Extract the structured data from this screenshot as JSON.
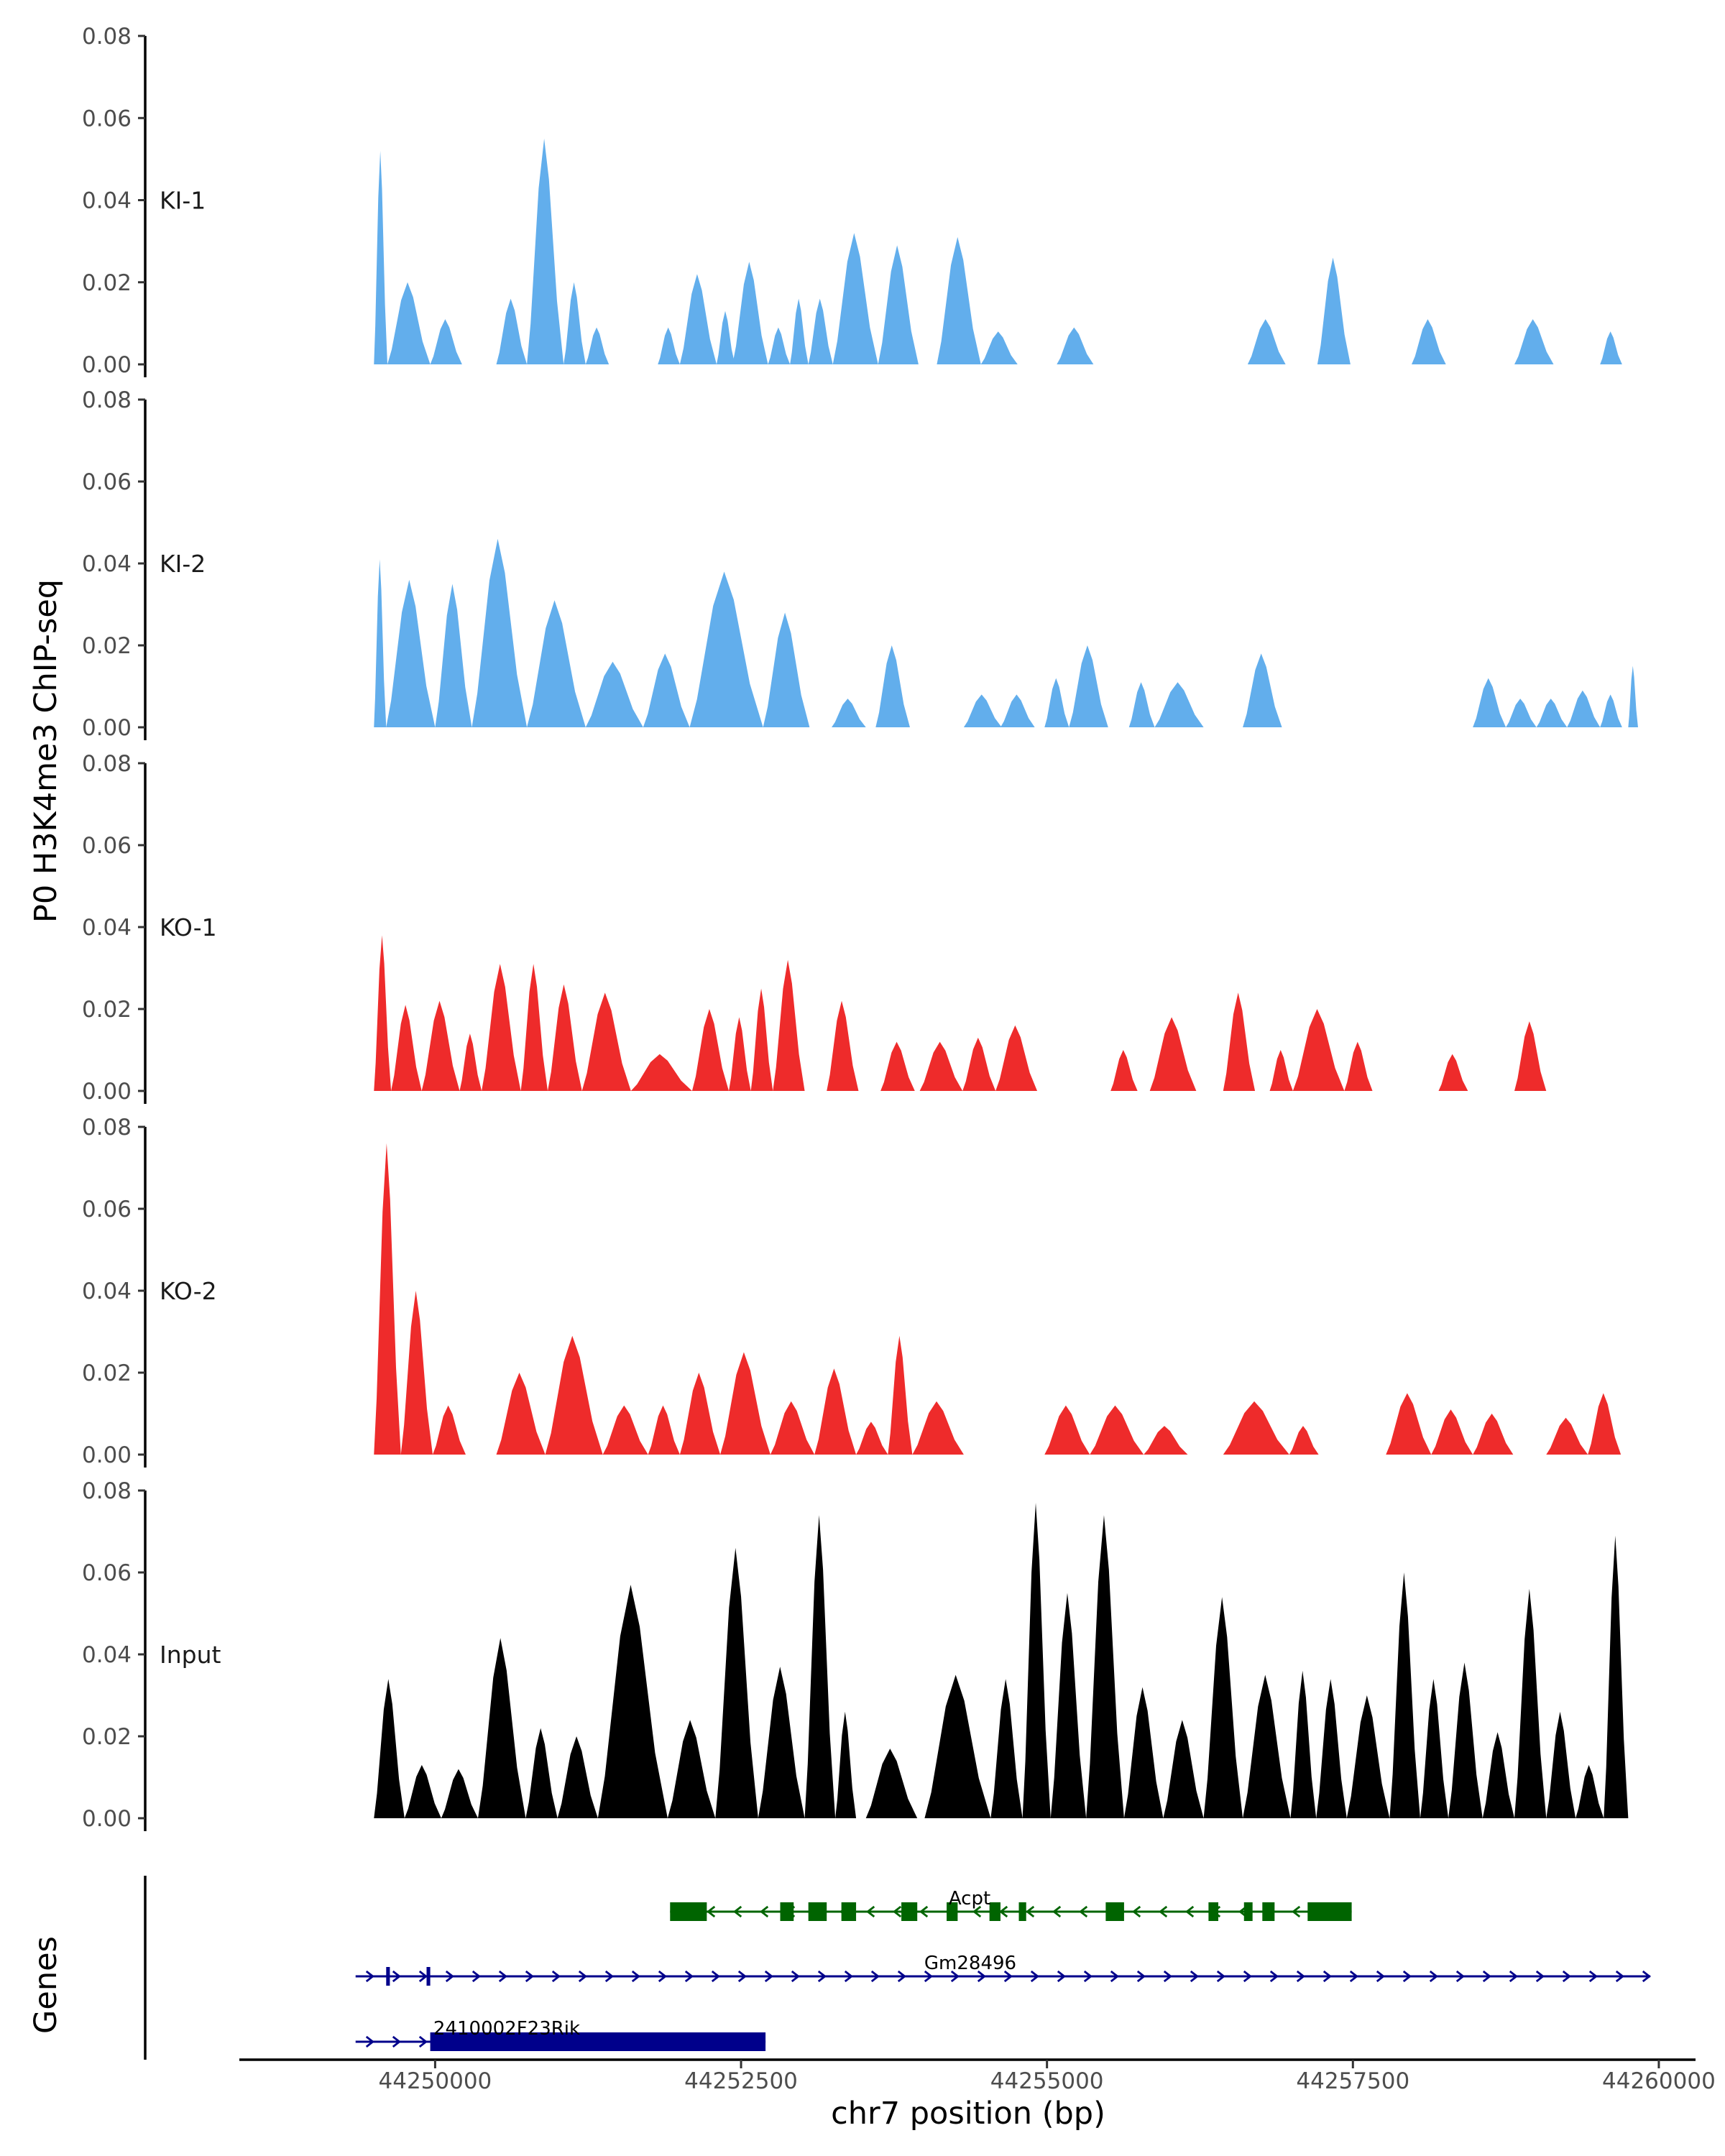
{
  "chart_data": {
    "type": "area",
    "ylabel": "P0 H3K4me3 ChIP-seq",
    "xlabel": "chr7 position (bp)",
    "genes_label": "Genes",
    "x_range": [
      44249500,
      44260000
    ],
    "xlim": [
      44248400,
      44260300
    ],
    "ylim": [
      0,
      0.08
    ],
    "y_ticks": [
      0,
      0.02,
      0.04,
      0.06,
      0.08
    ],
    "y_tick_labels": [
      "0.00",
      "0.02",
      "0.04",
      "0.06",
      "0.08"
    ],
    "x_ticks": [
      44250000,
      44252500,
      44255000,
      44257500,
      44260000
    ],
    "x_tick_labels": [
      "44250000",
      "44252500",
      "44255000",
      "44257500",
      "44260000"
    ],
    "colors": {
      "KI": "#62aeec",
      "KO": "#ee2b2b",
      "Input": "#000000",
      "gene_green": "#006400",
      "gene_navy": "#00008b"
    },
    "series": [
      {
        "name": "KI-1",
        "color": "#62aeec",
        "peaks": [
          [
            44249500,
            44249610,
            0.052
          ],
          [
            44249610,
            44249960,
            0.02
          ],
          [
            44249960,
            44250220,
            0.011
          ],
          [
            44250500,
            44250750,
            0.016
          ],
          [
            44250750,
            44251050,
            0.055
          ],
          [
            44251050,
            44251230,
            0.02
          ],
          [
            44251230,
            44251420,
            0.009
          ],
          [
            44251820,
            44252000,
            0.009
          ],
          [
            44252000,
            44252300,
            0.022
          ],
          [
            44252300,
            44252450,
            0.013
          ],
          [
            44252430,
            44252720,
            0.025
          ],
          [
            44252720,
            44252900,
            0.009
          ],
          [
            44252900,
            44253050,
            0.016
          ],
          [
            44253050,
            44253250,
            0.016
          ],
          [
            44253250,
            44253620,
            0.032
          ],
          [
            44253620,
            44253950,
            0.029
          ],
          [
            44254100,
            44254460,
            0.031
          ],
          [
            44254460,
            44254760,
            0.008
          ],
          [
            44255080,
            44255380,
            0.009
          ],
          [
            44256640,
            44256950,
            0.011
          ],
          [
            44257210,
            44257480,
            0.026
          ],
          [
            44257980,
            44258260,
            0.011
          ],
          [
            44258820,
            44259140,
            0.011
          ],
          [
            44259520,
            44259700,
            0.008
          ]
        ]
      },
      {
        "name": "KI-2",
        "color": "#62aeec",
        "peaks": [
          [
            44249500,
            44249600,
            0.041
          ],
          [
            44249600,
            44250000,
            0.036
          ],
          [
            44250000,
            44250300,
            0.035
          ],
          [
            44250300,
            44250750,
            0.046
          ],
          [
            44250750,
            44251230,
            0.031
          ],
          [
            44251230,
            44251700,
            0.016
          ],
          [
            44251700,
            44252080,
            0.018
          ],
          [
            44252080,
            44252680,
            0.038
          ],
          [
            44252680,
            44253060,
            0.028
          ],
          [
            44253240,
            44253520,
            0.007
          ],
          [
            44253600,
            44253880,
            0.02
          ],
          [
            44254320,
            44254630,
            0.008
          ],
          [
            44254620,
            44254900,
            0.008
          ],
          [
            44254980,
            44255180,
            0.012
          ],
          [
            44255180,
            44255500,
            0.02
          ],
          [
            44255670,
            44255880,
            0.011
          ],
          [
            44255880,
            44256280,
            0.011
          ],
          [
            44256600,
            44256920,
            0.018
          ],
          [
            44258480,
            44258750,
            0.012
          ],
          [
            44258750,
            44259000,
            0.007
          ],
          [
            44259000,
            44259250,
            0.007
          ],
          [
            44259250,
            44259520,
            0.009
          ],
          [
            44259520,
            44259700,
            0.008
          ],
          [
            44259750,
            44259830,
            0.015
          ]
        ]
      },
      {
        "name": "KO-1",
        "color": "#ee2b2b",
        "peaks": [
          [
            44249500,
            44249640,
            0.038
          ],
          [
            44249640,
            44249890,
            0.021
          ],
          [
            44249890,
            44250200,
            0.022
          ],
          [
            44250200,
            44250380,
            0.014
          ],
          [
            44250380,
            44250700,
            0.031
          ],
          [
            44250700,
            44250920,
            0.031
          ],
          [
            44250920,
            44251200,
            0.026
          ],
          [
            44251200,
            44251600,
            0.024
          ],
          [
            44251600,
            44252100,
            0.009
          ],
          [
            44252100,
            44252400,
            0.02
          ],
          [
            44252400,
            44252580,
            0.018
          ],
          [
            44252580,
            44252760,
            0.025
          ],
          [
            44252760,
            44253020,
            0.032
          ],
          [
            44253200,
            44253460,
            0.022
          ],
          [
            44253640,
            44253920,
            0.012
          ],
          [
            44253960,
            44254310,
            0.012
          ],
          [
            44254310,
            44254580,
            0.013
          ],
          [
            44254580,
            44254920,
            0.016
          ],
          [
            44255520,
            44255740,
            0.01
          ],
          [
            44255840,
            44256220,
            0.018
          ],
          [
            44256440,
            44256700,
            0.024
          ],
          [
            44256820,
            44257010,
            0.01
          ],
          [
            44257010,
            44257430,
            0.02
          ],
          [
            44257430,
            44257660,
            0.012
          ],
          [
            44258200,
            44258440,
            0.009
          ],
          [
            44258820,
            44259080,
            0.017
          ]
        ]
      },
      {
        "name": "KO-2",
        "color": "#ee2b2b",
        "peaks": [
          [
            44249500,
            44249720,
            0.076
          ],
          [
            44249720,
            44249980,
            0.04
          ],
          [
            44249980,
            44250250,
            0.012
          ],
          [
            44250500,
            44250900,
            0.02
          ],
          [
            44250900,
            44251370,
            0.029
          ],
          [
            44251370,
            44251740,
            0.012
          ],
          [
            44251740,
            44252000,
            0.012
          ],
          [
            44252000,
            44252330,
            0.02
          ],
          [
            44252330,
            44252740,
            0.025
          ],
          [
            44252740,
            44253100,
            0.013
          ],
          [
            44253100,
            44253440,
            0.021
          ],
          [
            44253440,
            44253700,
            0.008
          ],
          [
            44253700,
            44253900,
            0.029
          ],
          [
            44253900,
            44254320,
            0.013
          ],
          [
            44254980,
            44255350,
            0.012
          ],
          [
            44255350,
            44255790,
            0.012
          ],
          [
            44255790,
            44256150,
            0.007
          ],
          [
            44256440,
            44256980,
            0.013
          ],
          [
            44256980,
            44257220,
            0.007
          ],
          [
            44257770,
            44258140,
            0.015
          ],
          [
            44258140,
            44258480,
            0.011
          ],
          [
            44258480,
            44258810,
            0.01
          ],
          [
            44259080,
            44259420,
            0.009
          ],
          [
            44259420,
            44259690,
            0.015
          ]
        ]
      },
      {
        "name": "Input",
        "color": "#000000",
        "peaks": [
          [
            44249500,
            44249750,
            0.034
          ],
          [
            44249750,
            44250050,
            0.013
          ],
          [
            44250050,
            44250350,
            0.012
          ],
          [
            44250350,
            44250740,
            0.044
          ],
          [
            44250740,
            44251000,
            0.022
          ],
          [
            44251000,
            44251330,
            0.02
          ],
          [
            44251330,
            44251900,
            0.057
          ],
          [
            44251900,
            44252290,
            0.024
          ],
          [
            44252290,
            44252640,
            0.066
          ],
          [
            44252640,
            44253020,
            0.037
          ],
          [
            44253020,
            44253270,
            0.074
          ],
          [
            44253270,
            44253440,
            0.026
          ],
          [
            44253520,
            44253940,
            0.017
          ],
          [
            44254000,
            44254540,
            0.035
          ],
          [
            44254540,
            44254800,
            0.034
          ],
          [
            44254800,
            44255030,
            0.077
          ],
          [
            44255030,
            44255320,
            0.055
          ],
          [
            44255320,
            44255630,
            0.074
          ],
          [
            44255630,
            44255950,
            0.032
          ],
          [
            44255950,
            44256280,
            0.024
          ],
          [
            44256280,
            44256600,
            0.054
          ],
          [
            44256600,
            44256990,
            0.035
          ],
          [
            44256990,
            44257200,
            0.036
          ],
          [
            44257200,
            44257450,
            0.034
          ],
          [
            44257450,
            44257800,
            0.03
          ],
          [
            44257800,
            44258050,
            0.06
          ],
          [
            44258050,
            44258280,
            0.034
          ],
          [
            44258280,
            44258560,
            0.038
          ],
          [
            44258560,
            44258820,
            0.021
          ],
          [
            44258820,
            44259080,
            0.056
          ],
          [
            44259080,
            44259320,
            0.026
          ],
          [
            44259320,
            44259550,
            0.013
          ],
          [
            44259550,
            44259750,
            0.069
          ]
        ]
      }
    ],
    "genes": [
      {
        "name": "Acpt",
        "color": "#006400",
        "strand": "-",
        "start": 44251920,
        "end": 44257490,
        "exons": [
          [
            44251920,
            44252220
          ],
          [
            44252820,
            44252930
          ],
          [
            44253050,
            44253200
          ],
          [
            44253320,
            44253440
          ],
          [
            44253810,
            44253940
          ],
          [
            44254180,
            44254270
          ],
          [
            44254530,
            44254620
          ],
          [
            44254770,
            44254830
          ],
          [
            44255480,
            44255630
          ],
          [
            44256320,
            44256400
          ],
          [
            44256610,
            44256680
          ],
          [
            44256760,
            44256860
          ],
          [
            44257130,
            44257490
          ]
        ]
      },
      {
        "name": "Gm28496",
        "color": "#00008b",
        "strand": "+",
        "start": 44249350,
        "end": 44259930,
        "exons": [
          [
            44249600,
            44249630
          ],
          [
            44249930,
            44249960
          ]
        ]
      },
      {
        "name": "2410002F23Rik",
        "color": "#00008b",
        "strand": "+",
        "start": 44249350,
        "end": 44252700,
        "exons": [
          [
            44249960,
            44252700
          ]
        ]
      }
    ]
  }
}
